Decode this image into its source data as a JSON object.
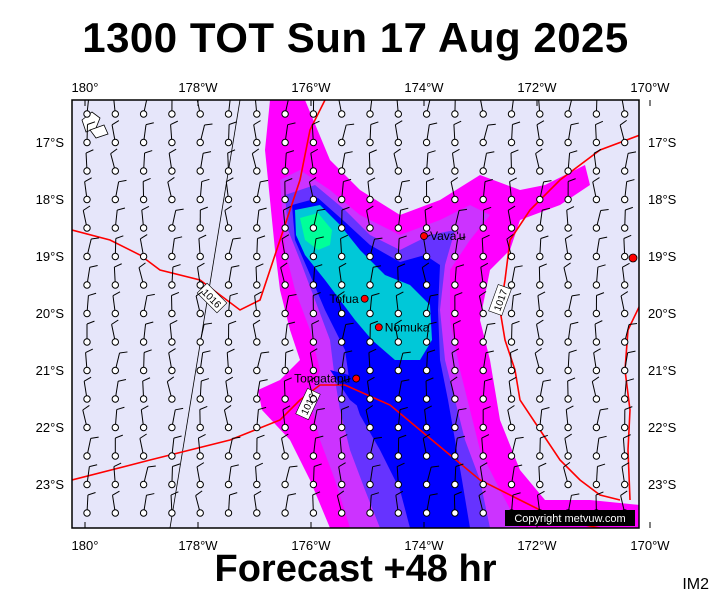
{
  "title": "1300 TOT Sun 17 Aug 2025",
  "subtitle": "Forecast +48 hr",
  "image_code": "IM2",
  "copyright": "Copyright metvuw.com",
  "lon_labels": [
    "180°",
    "178°W",
    "176°W",
    "174°W",
    "172°W",
    "170°W"
  ],
  "lat_labels": [
    "17°S",
    "18°S",
    "19°S",
    "20°S",
    "21°S",
    "22°S",
    "23°S"
  ],
  "isobar_labels": [
    "1016",
    "1017",
    "1016"
  ],
  "places": [
    {
      "name": "Vava'u",
      "lon": -174.0,
      "lat": -18.65
    },
    {
      "name": "Tofua",
      "lon": -175.05,
      "lat": -19.75
    },
    {
      "name": "Nomuka",
      "lon": -174.8,
      "lat": -20.25
    },
    {
      "name": "Tongatapu",
      "lon": -175.2,
      "lat": -21.15
    }
  ],
  "colors": {
    "ocean": "#e6e6fa",
    "precip_light": "#ff00ff",
    "precip_medium": "#cc33ff",
    "precip_heavy": "#6633ff",
    "precip_heavier": "#0000ff",
    "precip_core": "#00e0e0",
    "precip_peak": "#00ff66",
    "isobar": "#ff0000",
    "pin": "#ff0000"
  }
}
